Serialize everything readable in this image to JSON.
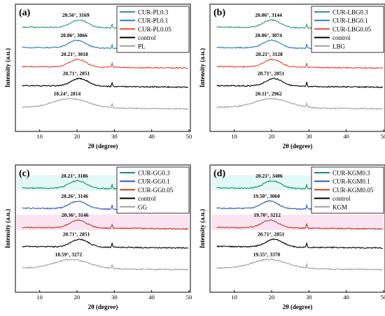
{
  "colors": {
    "green": "#2E9E6B",
    "blue": "#2E7CC9",
    "red": "#E8453C",
    "black": "#000000",
    "gray": "#A0A0A0",
    "cc_green": "#1E8E5E",
    "cc_blue": "#2F57C8",
    "cc_red": "#B0432C",
    "highlight_cyan": "#CFF5F0",
    "highlight_pink": "#F8D0EA"
  },
  "chart_data": [
    {
      "type": "line",
      "panel_label": "(a)",
      "xlabel": "2θ (degree)",
      "ylabel": "Intensity (a.u.)",
      "xlim": [
        5,
        50
      ],
      "xticks": [
        10,
        20,
        30,
        40,
        50
      ],
      "legend_position": "top-right",
      "series": [
        {
          "name": "CUR-PL0.3",
          "color": "green",
          "peak_x": 20.56,
          "annotation": "20.56°, 3169"
        },
        {
          "name": "CUR-PL0.1",
          "color": "blue",
          "peak_x": 20.06,
          "annotation": "20.06°, 3066"
        },
        {
          "name": "CUR-PL0.05",
          "color": "red",
          "peak_x": 20.21,
          "annotation": "20.21°, 3018"
        },
        {
          "name": "control",
          "color": "black",
          "peak_x": 20.71,
          "annotation": "20.71°, 2851"
        },
        {
          "name": "PL",
          "color": "gray",
          "peak_x": 18.24,
          "annotation": "18.24°, 2814"
        }
      ]
    },
    {
      "type": "line",
      "panel_label": "(b)",
      "xlabel": "2θ (degree)",
      "ylabel": "Intensity (a.u.)",
      "xlim": [
        5,
        50
      ],
      "xticks": [
        10,
        20,
        30,
        40,
        50
      ],
      "legend_position": "top-right",
      "series": [
        {
          "name": "CUR-LBG0.3",
          "color": "green",
          "peak_x": 20.06,
          "annotation": "20.06°, 3144"
        },
        {
          "name": "CUR-LBG0.1",
          "color": "blue",
          "peak_x": 20.06,
          "annotation": "20.06°, 3074"
        },
        {
          "name": "CUR-LBG0.05",
          "color": "red",
          "peak_x": 20.21,
          "annotation": "20.21°, 3128"
        },
        {
          "name": "control",
          "color": "black",
          "peak_x": 20.71,
          "annotation": "20.71°, 2851"
        },
        {
          "name": "LBG",
          "color": "gray",
          "peak_x": 20.11,
          "annotation": "20.11°, 2962"
        }
      ]
    },
    {
      "type": "line",
      "panel_label": "(c)",
      "xlabel": "2θ (degree)",
      "ylabel": "Intensity (a.u.)",
      "xlim": [
        5,
        50
      ],
      "xticks": [
        10,
        20,
        30,
        40,
        50
      ],
      "legend_position": "top-right",
      "series": [
        {
          "name": "CUR-GG0.3",
          "color": "cc_green",
          "peak_x": 20.21,
          "annotation": "20.21°, 3186",
          "highlight": "highlight_cyan"
        },
        {
          "name": "CUR-GG0.1",
          "color": "cc_blue",
          "peak_x": 20.26,
          "annotation": "20.26°, 3146"
        },
        {
          "name": "CUR-GG0.05",
          "color": "cc_red",
          "peak_x": 20.36,
          "annotation": "20.36°, 3146",
          "highlight": "highlight_pink"
        },
        {
          "name": "control",
          "color": "black",
          "peak_x": 20.71,
          "annotation": "20.71°, 2851"
        },
        {
          "name": "GG",
          "color": "gray",
          "peak_x": 18.59,
          "annotation": "18.59°, 3272"
        }
      ]
    },
    {
      "type": "line",
      "panel_label": "(d)",
      "xlabel": "2θ (degree)",
      "ylabel": "Intensity (a.u.)",
      "xlim": [
        5,
        50
      ],
      "xticks": [
        10,
        20,
        30,
        40,
        50
      ],
      "legend_position": "top-right",
      "series": [
        {
          "name": "CUR-KGM0.3",
          "color": "cc_green",
          "peak_x": 20.21,
          "annotation": "20.21°, 3406",
          "highlight": "highlight_cyan"
        },
        {
          "name": "CUR-KGM0.1",
          "color": "cc_blue",
          "peak_x": 19.5,
          "annotation": "19.50°, 3060"
        },
        {
          "name": "CUR-KGM0.05",
          "color": "cc_red",
          "peak_x": 19.7,
          "annotation": "19.70°, 3212",
          "highlight": "highlight_pink"
        },
        {
          "name": "control",
          "color": "black",
          "peak_x": 20.71,
          "annotation": "20.71°, 2851"
        },
        {
          "name": "KGM",
          "color": "gray",
          "peak_x": 19.55,
          "annotation": "19.55°, 3370"
        }
      ]
    }
  ]
}
